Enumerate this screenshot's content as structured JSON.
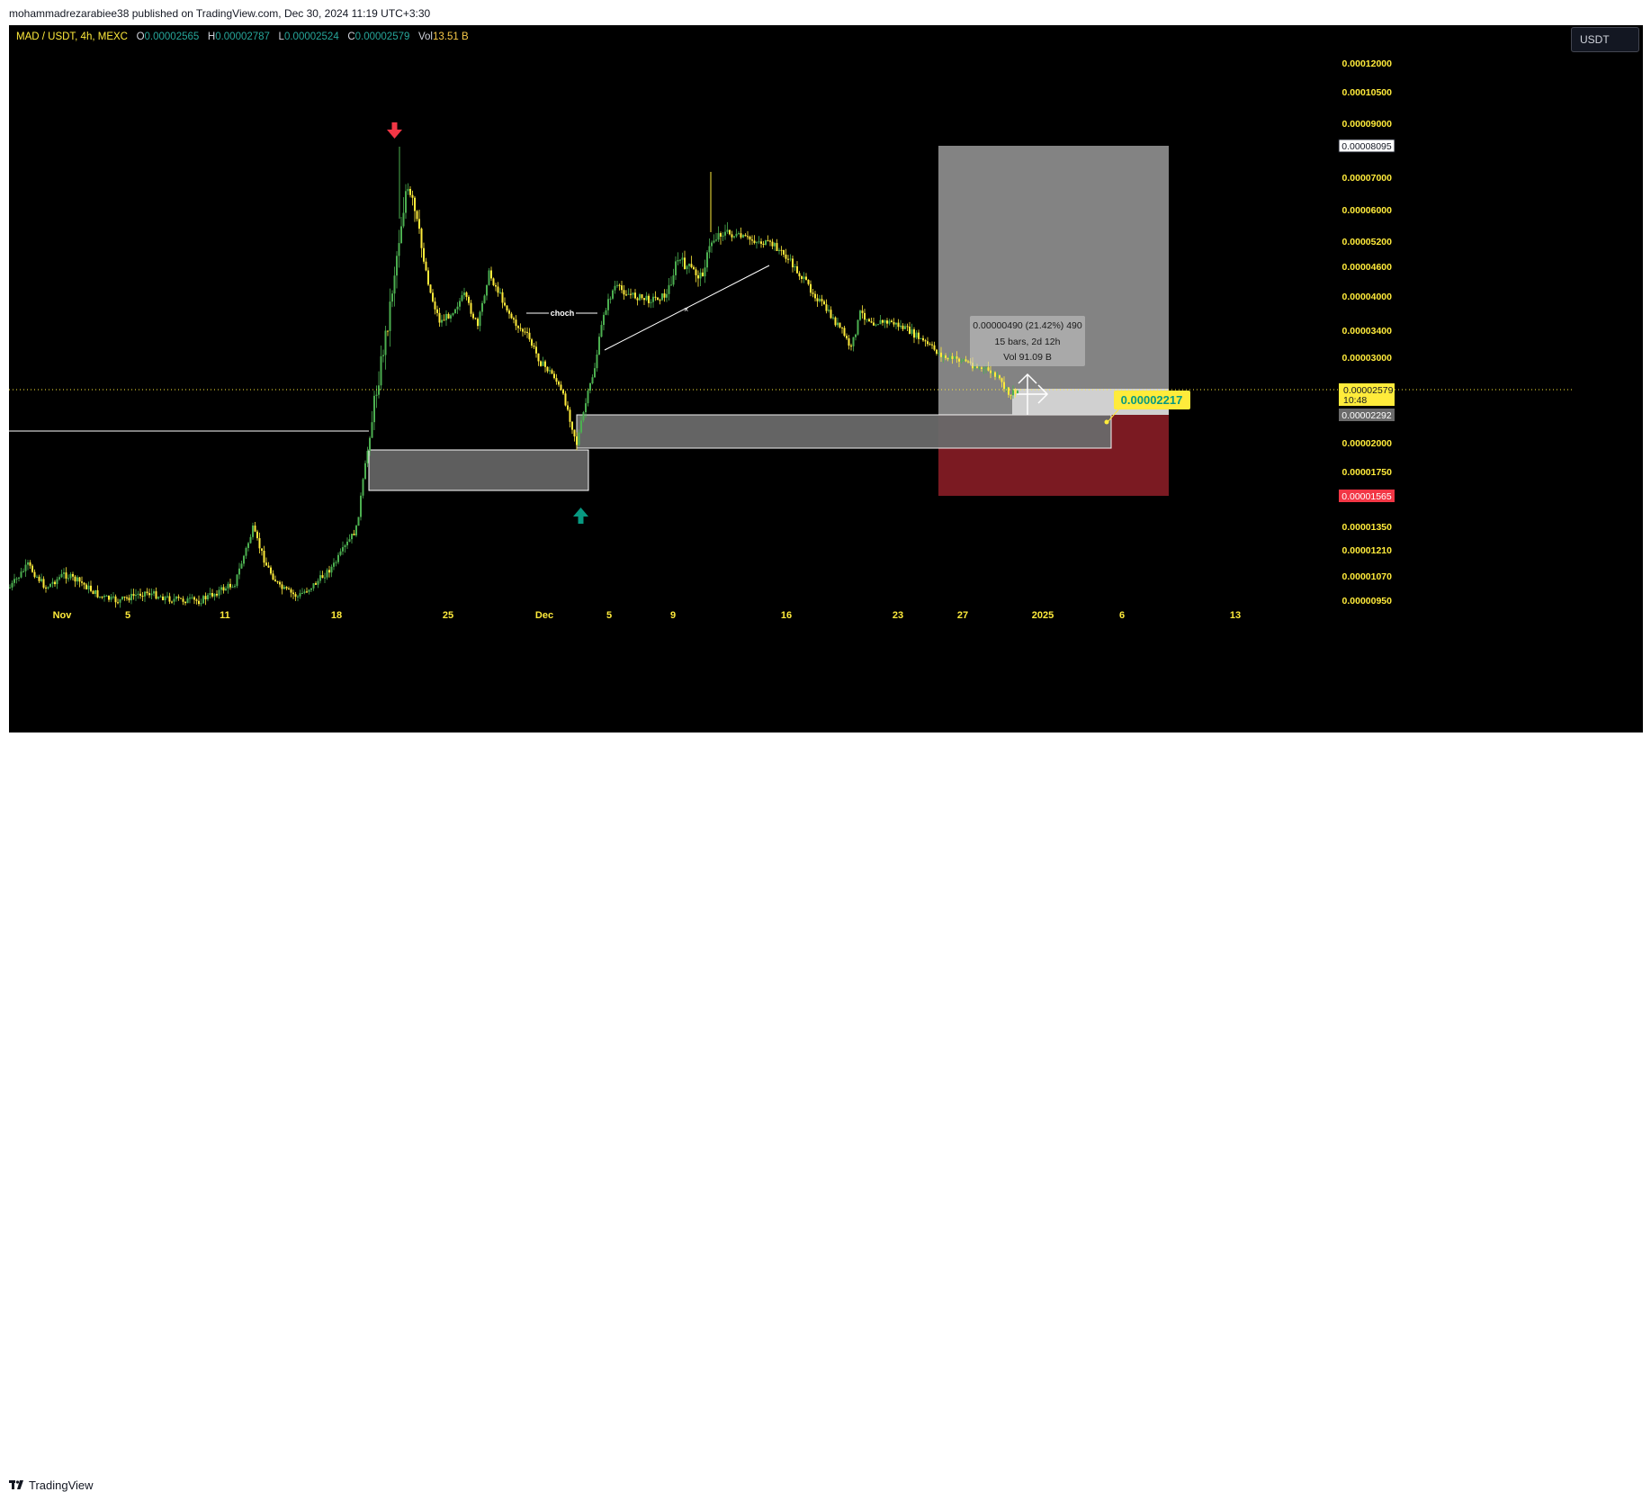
{
  "publisher_line": "mohammadrezarabiee38 published on TradingView.com, Dec 30, 2024 11:19 UTC+3:30",
  "legend": {
    "symbol": "MAD / USDT, 4h, MEXC",
    "o_label": "O",
    "o_value": "0.00002565",
    "h_label": "H",
    "h_value": "0.00002787",
    "l_label": "L",
    "l_value": "0.00002524",
    "c_label": "C",
    "c_value": "0.00002579",
    "vol_label": "Vol",
    "vol_value": "13.51 B"
  },
  "currency": "USDT",
  "branding": "TradingView",
  "annotations": {
    "choch": "choch",
    "measure_line1": "0.00000490 (21.42%) 490",
    "measure_line2": "15 bars, 2d 12h",
    "measure_line3": "Vol 91.09 B",
    "target_price": "0.00002217"
  },
  "colors": {
    "background": "#000000",
    "up": "#4caf50",
    "down": "#ffeb3b",
    "target_zone": "#8a8a8a",
    "stop_zone": "#7b1a22",
    "stop_badge": "#f23645",
    "price_badge": "#ffeb3b",
    "red_arrow": "#f23645",
    "green_arrow": "#089981"
  },
  "chart_data": {
    "type": "candlestick",
    "symbol": "MAD / USDT",
    "timeframe": "4h",
    "exchange": "MEXC",
    "y_scale": "log",
    "ylim": [
      9.5e-06,
      1.35e-05
    ],
    "y_ticks": [
      "0.00012000",
      "0.00010500",
      "0.00009000",
      "0.00007000",
      "0.00006000",
      "0.00005200",
      "0.00004600",
      "0.00004000",
      "0.00003400",
      "0.00003000",
      "0.00002000",
      "0.00001750",
      "0.00001350",
      "0.00001210",
      "0.00001070",
      "0.00000950"
    ],
    "x_ticks": [
      "Nov",
      "5",
      "11",
      "18",
      "25",
      "Dec",
      "5",
      "9",
      "16",
      "23",
      "27",
      "2025",
      "6",
      "13"
    ],
    "price_labels": {
      "last": "0.00002579",
      "countdown": "10:48",
      "entry": "0.00002292",
      "target": "0.00008095",
      "stop": "0.00001565"
    },
    "key_points": [
      {
        "label": "start",
        "price": 1.04e-05
      },
      {
        "label": "pump_low",
        "price": 1.8e-05
      },
      {
        "label": "peak",
        "price": 8.1e-05
      },
      {
        "label": "choch",
        "price": 3.6e-05
      },
      {
        "label": "dec_low",
        "price": 1.95e-05
      },
      {
        "label": "dec_high",
        "price": 7.2e-05
      },
      {
        "label": "last",
        "price": 2.579e-05
      }
    ]
  }
}
